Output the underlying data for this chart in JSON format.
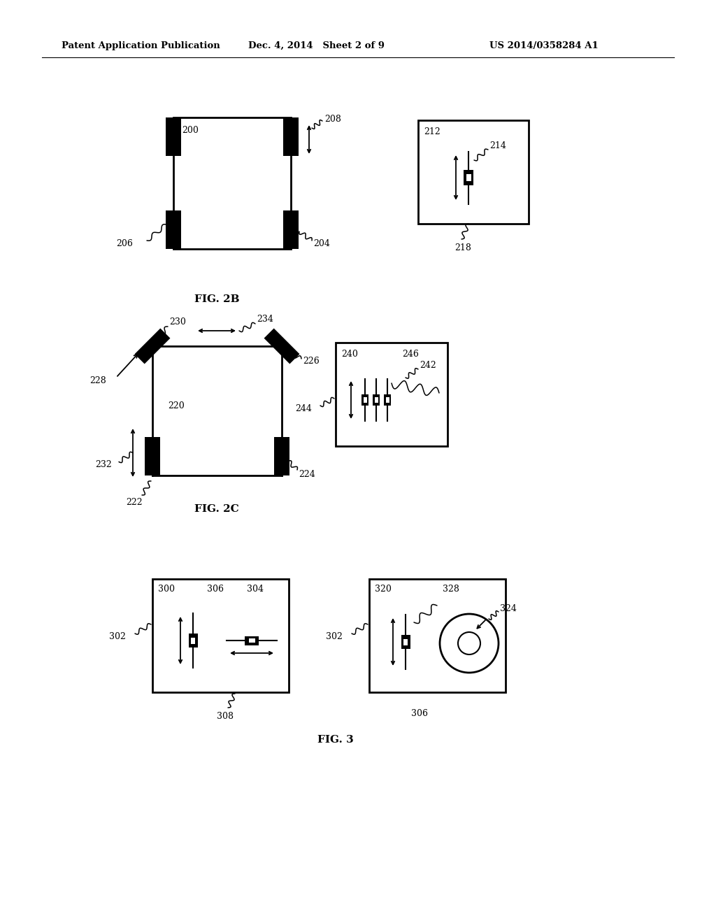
{
  "bg": "#ffffff",
  "header_left": "Patent Application Publication",
  "header_center": "Dec. 4, 2014   Sheet 2 of 9",
  "header_right": "US 2014/0358284 A1",
  "fig2b_label": "FIG. 2B",
  "fig2c_label": "FIG. 2C",
  "fig3_label": "FIG. 3"
}
